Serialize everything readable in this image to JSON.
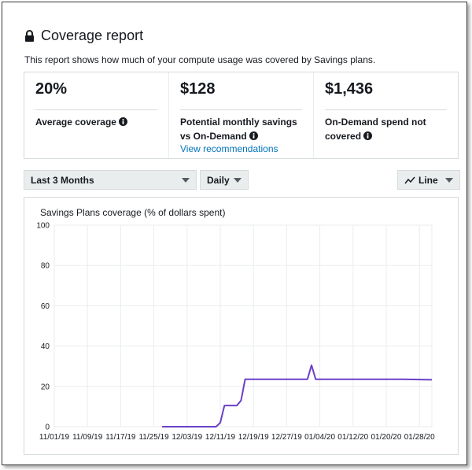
{
  "report": {
    "title": "Coverage report",
    "description": "This report shows how much of your compute usage was covered by Savings plans."
  },
  "stats": [
    {
      "value": "20%",
      "label": "Average coverage",
      "link": ""
    },
    {
      "value": "$128",
      "label": "Potential monthly savings vs On-Demand",
      "link": "View recommendations"
    },
    {
      "value": "$1,436",
      "label": "On-Demand spend not covered",
      "link": ""
    }
  ],
  "controls": {
    "range": "Last 3 Months",
    "granularity": "Daily",
    "chart_type": "Line"
  },
  "icons": [
    "lock-icon",
    "info-icon",
    "line-chart-icon",
    "caret-down-icon"
  ],
  "colors": {
    "series": "#6b40c9",
    "grid": "#eaeded",
    "link": "#0073bb"
  },
  "chart_data": {
    "type": "line",
    "title": "Savings Plans coverage (% of dollars spent)",
    "ylim": [
      0,
      100
    ],
    "yticks": [
      0,
      20,
      40,
      60,
      80,
      100
    ],
    "x_start": "2019-11-01",
    "x_end": "2020-01-31",
    "xtick_labels": [
      "11/01/19",
      "11/09/19",
      "11/17/19",
      "11/25/19",
      "12/03/19",
      "12/11/19",
      "12/19/19",
      "12/27/19",
      "01/04/20",
      "01/12/20",
      "01/20/20",
      "01/28/20"
    ],
    "xtick_dates": [
      "2019-11-01",
      "2019-11-09",
      "2019-11-17",
      "2019-11-25",
      "2019-12-03",
      "2019-12-11",
      "2019-12-19",
      "2019-12-27",
      "2020-01-04",
      "2020-01-12",
      "2020-01-20",
      "2020-01-28"
    ],
    "series": [
      {
        "x": [
          "2019-11-27",
          "2019-12-10",
          "2019-12-11",
          "2019-12-12",
          "2019-12-15",
          "2019-12-16",
          "2019-12-17",
          "2019-12-18",
          "2019-12-19",
          "2020-01-01",
          "2020-01-02",
          "2020-01-03",
          "2020-01-24",
          "2020-01-31"
        ],
        "values": [
          0,
          0,
          2,
          10.5,
          10.5,
          13,
          23.5,
          23.5,
          23.5,
          23.5,
          30.5,
          23.5,
          23.5,
          23.3
        ]
      }
    ]
  }
}
